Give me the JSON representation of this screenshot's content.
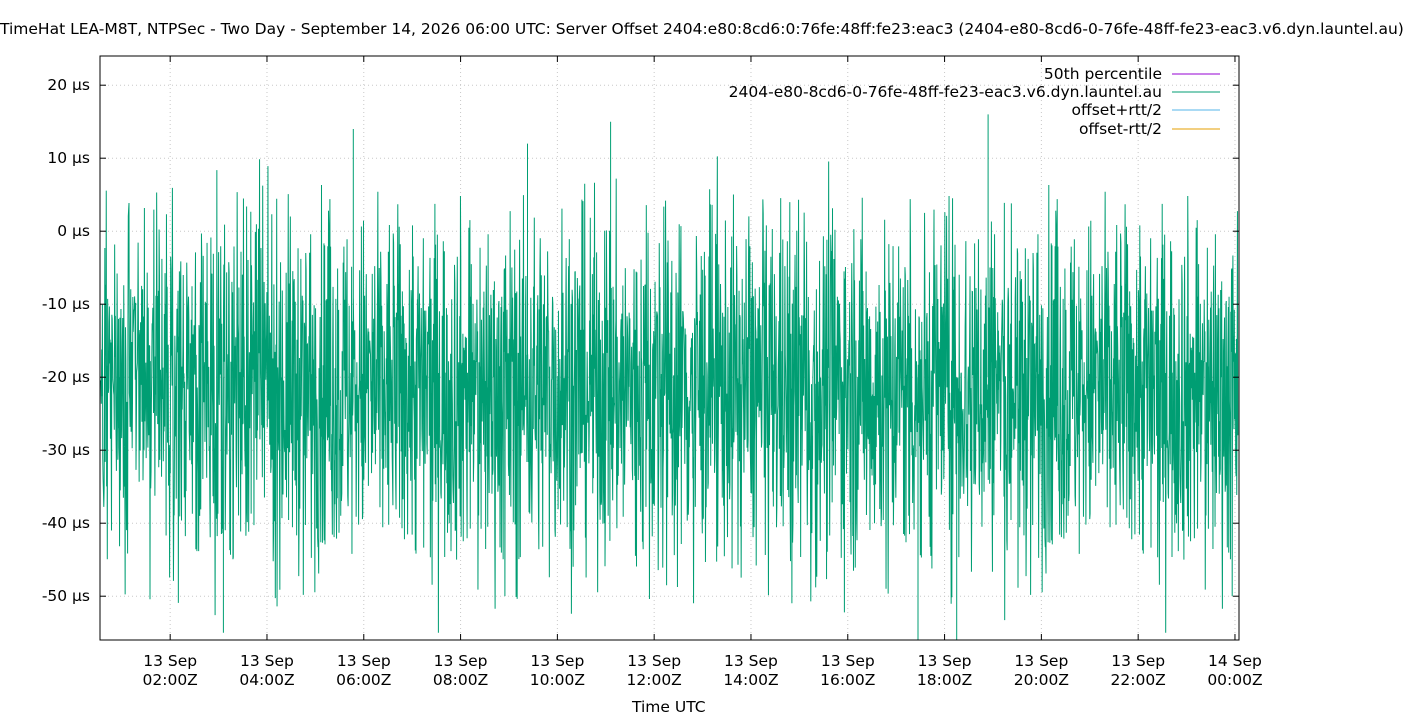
{
  "chart_data": {
    "type": "line",
    "title": "TimeHat LEA-M8T, NTPSec - Two Day - September 14, 2026 06:00 UTC: Server Offset 2404:e80:8cd6:0:76fe:48ff:fe23:eac3 (2404-e80-8cd6-0-76fe-48ff-fe23-eac3.v6.dyn.launtel.au)",
    "xlabel": "Time UTC",
    "ylabel": "",
    "y_unit": "µs",
    "ylim": [
      -56,
      24
    ],
    "xlim": [
      "2026-09-13T00:33Z",
      "2026-09-14T00:05Z"
    ],
    "grid": true,
    "legend_position": "top-right",
    "yticks": [
      {
        "value": 20,
        "label": "20 µs"
      },
      {
        "value": 10,
        "label": "10 µs"
      },
      {
        "value": 0,
        "label": "0 µs"
      },
      {
        "value": -10,
        "label": "-10 µs"
      },
      {
        "value": -20,
        "label": "-20 µs"
      },
      {
        "value": -30,
        "label": "-30 µs"
      },
      {
        "value": -40,
        "label": "-40 µs"
      },
      {
        "value": -50,
        "label": "-50 µs"
      }
    ],
    "xticks": [
      {
        "time": "2026-09-13T02:00Z",
        "line1": "13 Sep",
        "line2": "02:00Z"
      },
      {
        "time": "2026-09-13T04:00Z",
        "line1": "13 Sep",
        "line2": "04:00Z"
      },
      {
        "time": "2026-09-13T06:00Z",
        "line1": "13 Sep",
        "line2": "06:00Z"
      },
      {
        "time": "2026-09-13T08:00Z",
        "line1": "13 Sep",
        "line2": "08:00Z"
      },
      {
        "time": "2026-09-13T10:00Z",
        "line1": "13 Sep",
        "line2": "10:00Z"
      },
      {
        "time": "2026-09-13T12:00Z",
        "line1": "13 Sep",
        "line2": "12:00Z"
      },
      {
        "time": "2026-09-13T14:00Z",
        "line1": "13 Sep",
        "line2": "14:00Z"
      },
      {
        "time": "2026-09-13T16:00Z",
        "line1": "13 Sep",
        "line2": "16:00Z"
      },
      {
        "time": "2026-09-13T18:00Z",
        "line1": "13 Sep",
        "line2": "18:00Z"
      },
      {
        "time": "2026-09-13T20:00Z",
        "line1": "13 Sep",
        "line2": "20:00Z"
      },
      {
        "time": "2026-09-13T22:00Z",
        "line1": "13 Sep",
        "line2": "22:00Z"
      },
      {
        "time": "2026-09-14T00:00Z",
        "line1": "14 Sep",
        "line2": "00:00Z"
      }
    ],
    "series": [
      {
        "name": "50th percentile",
        "color": "#9400d3",
        "value": -19
      },
      {
        "name": "2404-e80-8cd6-0-76fe-48ff-fe23-eac3.v6.dyn.launtel.au",
        "color": "#009e73",
        "typical_range": [
          -40,
          -3
        ],
        "min": -56,
        "max": 16
      },
      {
        "name": "offset+rtt/2",
        "color": "#56b4e9"
      },
      {
        "name": "offset-rtt/2",
        "color": "#e69f00"
      }
    ],
    "spikes": [
      {
        "time": "2026-09-13T05:47Z",
        "value": 14
      },
      {
        "time": "2026-09-13T09:23Z",
        "value": 12
      },
      {
        "time": "2026-09-13T11:06Z",
        "value": 15
      },
      {
        "time": "2026-09-13T18:54Z",
        "value": 16
      },
      {
        "time": "2026-09-13T17:27Z",
        "value": -56
      },
      {
        "time": "2026-09-13T18:15Z",
        "value": -56
      },
      {
        "time": "2026-09-13T03:06Z",
        "value": -55
      }
    ]
  }
}
